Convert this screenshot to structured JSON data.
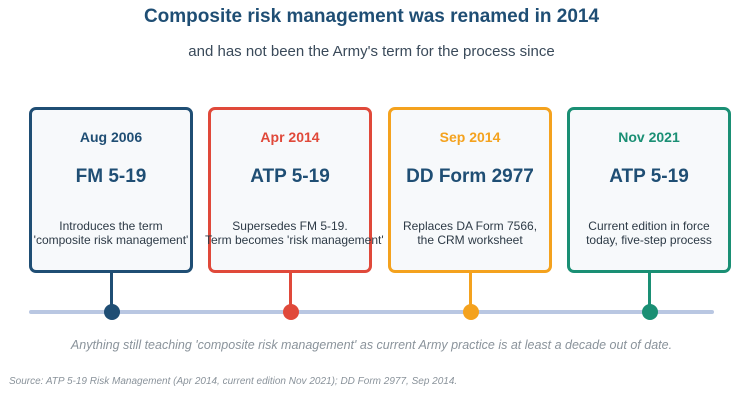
{
  "header": {
    "title": "Composite risk management was renamed in 2014",
    "subtitle": "and has not been the Army's term for the process since"
  },
  "events": [
    {
      "date": "Aug 2006",
      "name": "FM 5-19",
      "description": [
        "Introduces the term",
        "'composite risk management'"
      ],
      "color": "#1f4e74"
    },
    {
      "date": "Apr 2014",
      "name": "ATP 5-19",
      "description": [
        "Supersedes FM 5-19.",
        "Term becomes 'risk management'"
      ],
      "color": "#e0493a"
    },
    {
      "date": "Sep 2014",
      "name": "DD Form 2977",
      "description": [
        "Replaces DA Form 7566,",
        "the CRM worksheet"
      ],
      "color": "#f4a21e"
    },
    {
      "date": "Nov 2021",
      "name": "ATP 5-19",
      "description": [
        "Current edition in force",
        "today, five-step process"
      ],
      "color": "#1a8f74"
    }
  ],
  "footnote": "Anything still teaching 'composite risk management' as current Army practice is at least a decade out of date.",
  "source": "Source: ATP 5-19 Risk Management (Apr 2014, current edition Nov 2021); DD Form 2977, Sep 2014."
}
